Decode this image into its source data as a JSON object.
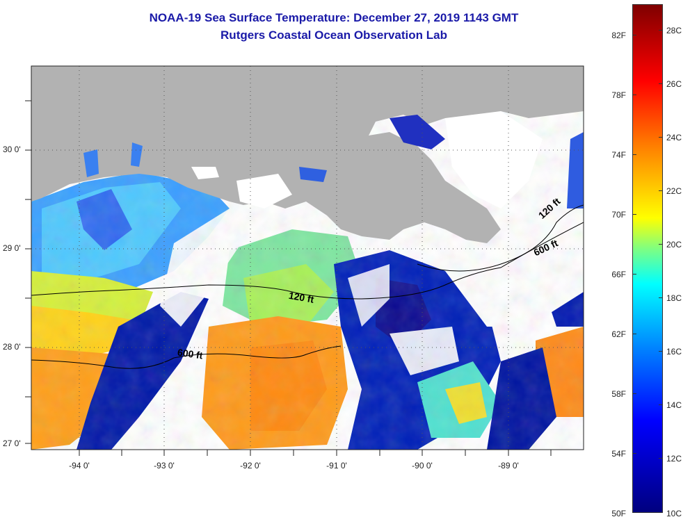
{
  "header": {
    "title": "NOAA-19 Sea Surface Temperature:  December 27, 2019 1143 GMT",
    "subtitle": "Rutgers Coastal Ocean Observation Lab"
  },
  "map": {
    "lat_labels": [
      "30 0'",
      "29 0'",
      "28 0'",
      "27 0'"
    ],
    "lon_labels": [
      "-94 0'",
      "-93 0'",
      "-92 0'",
      "-91 0'",
      "-90 0'",
      "-89 0'"
    ],
    "contour_labels": [
      "120 ft",
      "600 ft",
      "120 ft",
      "600 ft"
    ],
    "colors": {
      "land": "#b2b2b2",
      "cloud": "#ffffff",
      "cold_water": "#00109a",
      "mid_water": "#3fd6f0",
      "warm_water": "#ff9a1a"
    }
  },
  "colorbar": {
    "fahrenheit_labels": [
      "82F",
      "78F",
      "74F",
      "70F",
      "66F",
      "62F",
      "58F",
      "54F",
      "50F"
    ],
    "celsius_labels": [
      "28C",
      "26C",
      "24C",
      "22C",
      "20C",
      "18C",
      "16C",
      "14C",
      "12C",
      "10C"
    ],
    "range_f": [
      50,
      84
    ],
    "range_c": [
      10,
      29
    ]
  }
}
